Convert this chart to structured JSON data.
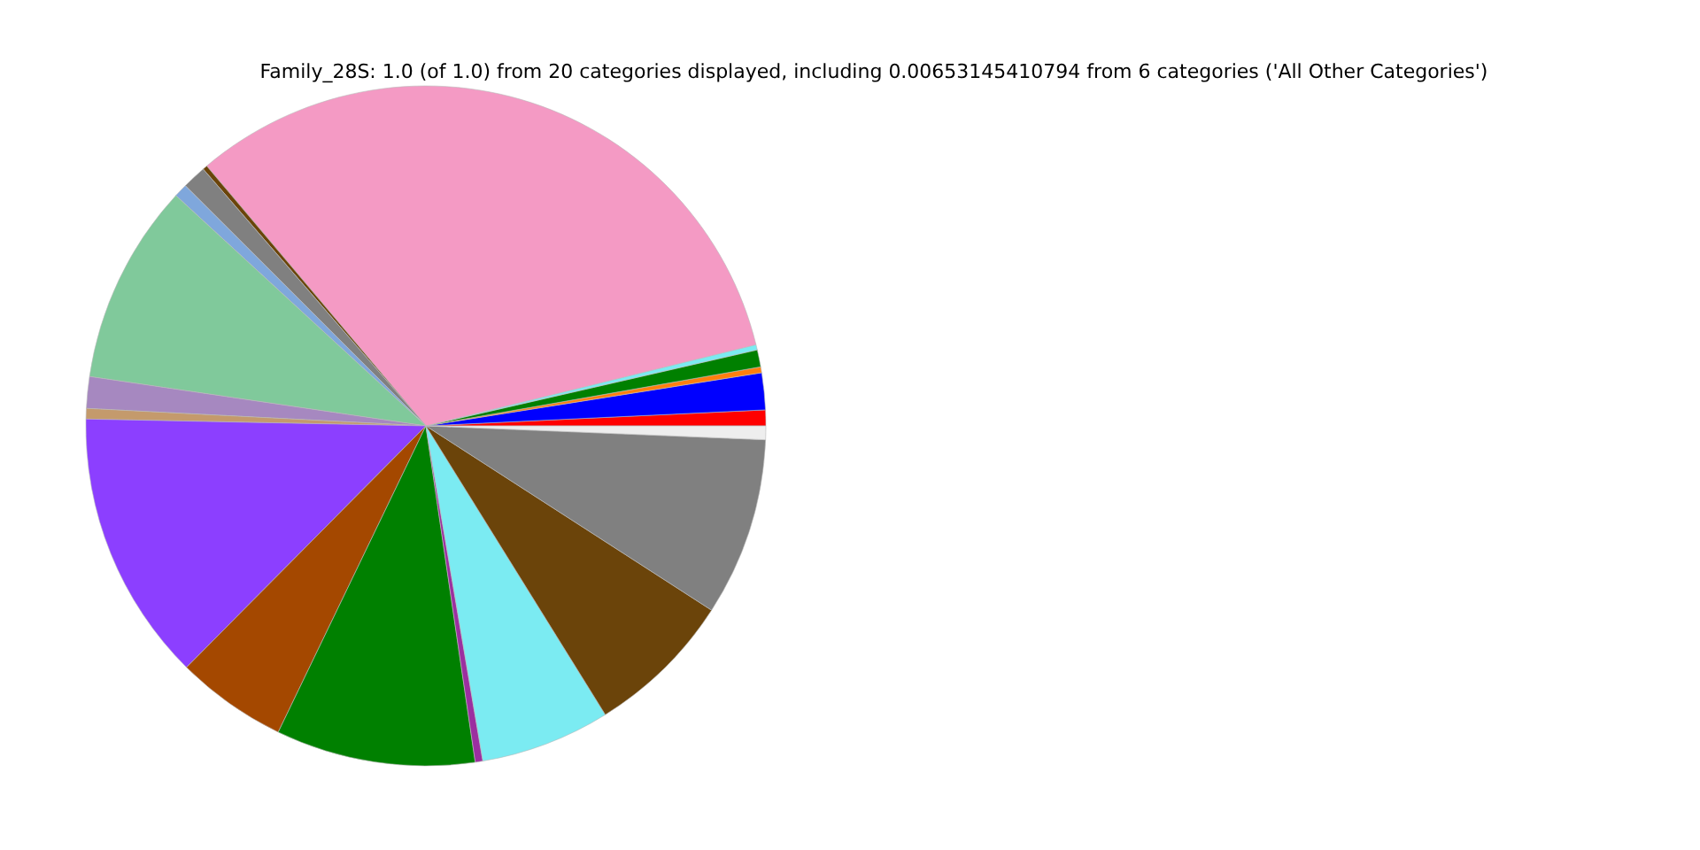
{
  "chart_data": {
    "type": "pie",
    "title": "Family_28S: 1.0 (of 1.0) from 20 categories displayed, including 0.00653145410794 from 6 categories ('All Other Categories')",
    "categories": [
      null,
      null,
      null,
      null,
      null,
      null,
      null,
      null,
      null,
      null,
      null,
      null,
      null,
      null,
      null,
      null,
      null,
      null,
      null,
      null
    ],
    "values": [
      0.75,
      1.75,
      0.28,
      0.81,
      0.25,
      32.31,
      0.22,
      1.14,
      0.64,
      9.53,
      1.5,
      0.5,
      12.89,
      5.28,
      9.47,
      0.36,
      6.17,
      7.03,
      8.47,
      0.65
    ],
    "colors": [
      "#ff0000",
      "#0000ff",
      "#ff7f0e",
      "#008000",
      "#7bebf2",
      "#f49ac4",
      "#6b4409",
      "#808080",
      "#7fa7dc",
      "#80c99b",
      "#a688c0",
      "#c49a6c",
      "#8c3fff",
      "#a44800",
      "#008000",
      "#9b2fa0",
      "#7bebf2",
      "#6b440a",
      "#808080",
      "#eeeeee"
    ]
  }
}
